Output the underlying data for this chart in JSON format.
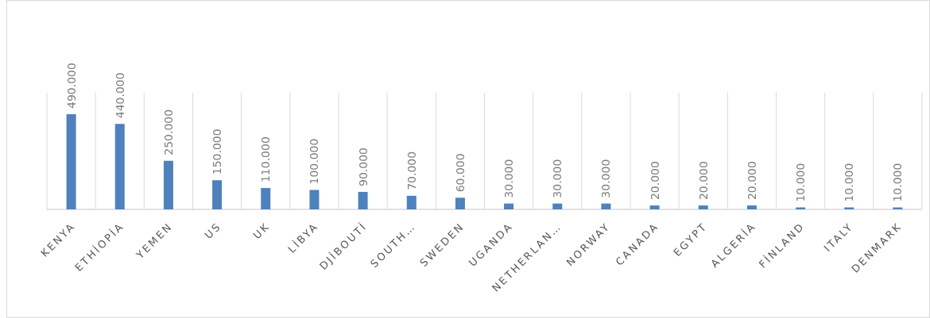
{
  "chart_data": {
    "type": "bar",
    "categories": [
      "KENYA",
      "ETHİOPİA",
      "YEMEN",
      "US",
      "UK",
      "LİBYA",
      "DJİBOUTİ",
      "SOUTH…",
      "SWEDEN",
      "UGANDA",
      "NETHERLAN…",
      "NORWAY",
      "CANADA",
      "EGYPT",
      "ALGERİA",
      "FİNLAND",
      "ITALY",
      "DENMARK"
    ],
    "values": [
      490000,
      440000,
      250000,
      150000,
      110000,
      100000,
      90000,
      70000,
      60000,
      30000,
      30000,
      30000,
      20000,
      20000,
      20000,
      10000,
      10000,
      10000
    ],
    "value_labels": [
      "490.000",
      "440.000",
      "250.000",
      "150.000",
      "110.000",
      "100.000",
      "90.000",
      "70.000",
      "60.000",
      "30.000",
      "30.000",
      "30.000",
      "20.000",
      "20.000",
      "20.000",
      "10.000",
      "10.000",
      "10.000"
    ],
    "color": "#4f81bd",
    "grid": "x"
  }
}
